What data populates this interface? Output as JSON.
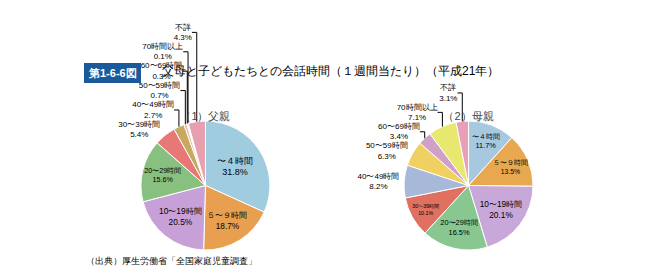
{
  "chart_data": [
    {
      "type": "pie",
      "title": "（1）父親",
      "categories": [
        "〜４時間",
        "５〜９時間",
        "10〜19時間",
        "20〜29時間",
        "30〜39時間",
        "40〜49時間",
        "50〜59時間",
        "60〜69時間",
        "70時間以上",
        "不詳"
      ],
      "values": [
        31.8,
        18.7,
        20.5,
        15.6,
        5.4,
        2.7,
        0.7,
        0.3,
        0.1,
        4.3
      ],
      "value_labels": [
        "31.8%",
        "18.7%",
        "20.5%",
        "15.6%",
        "5.4%",
        "2.7%",
        "0.7%",
        "0.3%",
        "0.1%",
        "4.3%"
      ],
      "colors": [
        "#a0cce0",
        "#e8a050",
        "#c8a0d8",
        "#88c080",
        "#e87878",
        "#c8a860",
        "#f0b8a0",
        "#b8cce8",
        "#f0e060",
        "#e8a0b0"
      ],
      "data_labels": true
    },
    {
      "type": "pie",
      "title": "（2）母親",
      "categories": [
        "〜４時間",
        "５〜９時間",
        "10〜19時間",
        "20〜29時間",
        "30〜39時間",
        "40〜49時間",
        "50〜59時間",
        "60〜69時間",
        "70時間以上",
        "不詳"
      ],
      "values": [
        11.7,
        13.5,
        20.1,
        16.5,
        10.1,
        8.2,
        6.3,
        3.4,
        7.1,
        3.1
      ],
      "value_labels": [
        "11.7%",
        "13.5%",
        "20.1%",
        "16.5%",
        "10.1%",
        "8.2%",
        "6.3%",
        "3.4%",
        "7.1%",
        "3.1%"
      ],
      "colors": [
        "#a8c8e0",
        "#e8a850",
        "#c8a8d8",
        "#88c890",
        "#e07060",
        "#a8b8d8",
        "#f0d060",
        "#d0a0c8",
        "#e8e870",
        "#e8a0b8"
      ],
      "data_labels": true
    }
  ],
  "title": "父母と子どもたちとの会話時間（１週間当たり）（平成21年）",
  "annotations": [
    "第1-6-6図",
    "（出典）厚生労働省「全国家庭児童調査」"
  ]
}
